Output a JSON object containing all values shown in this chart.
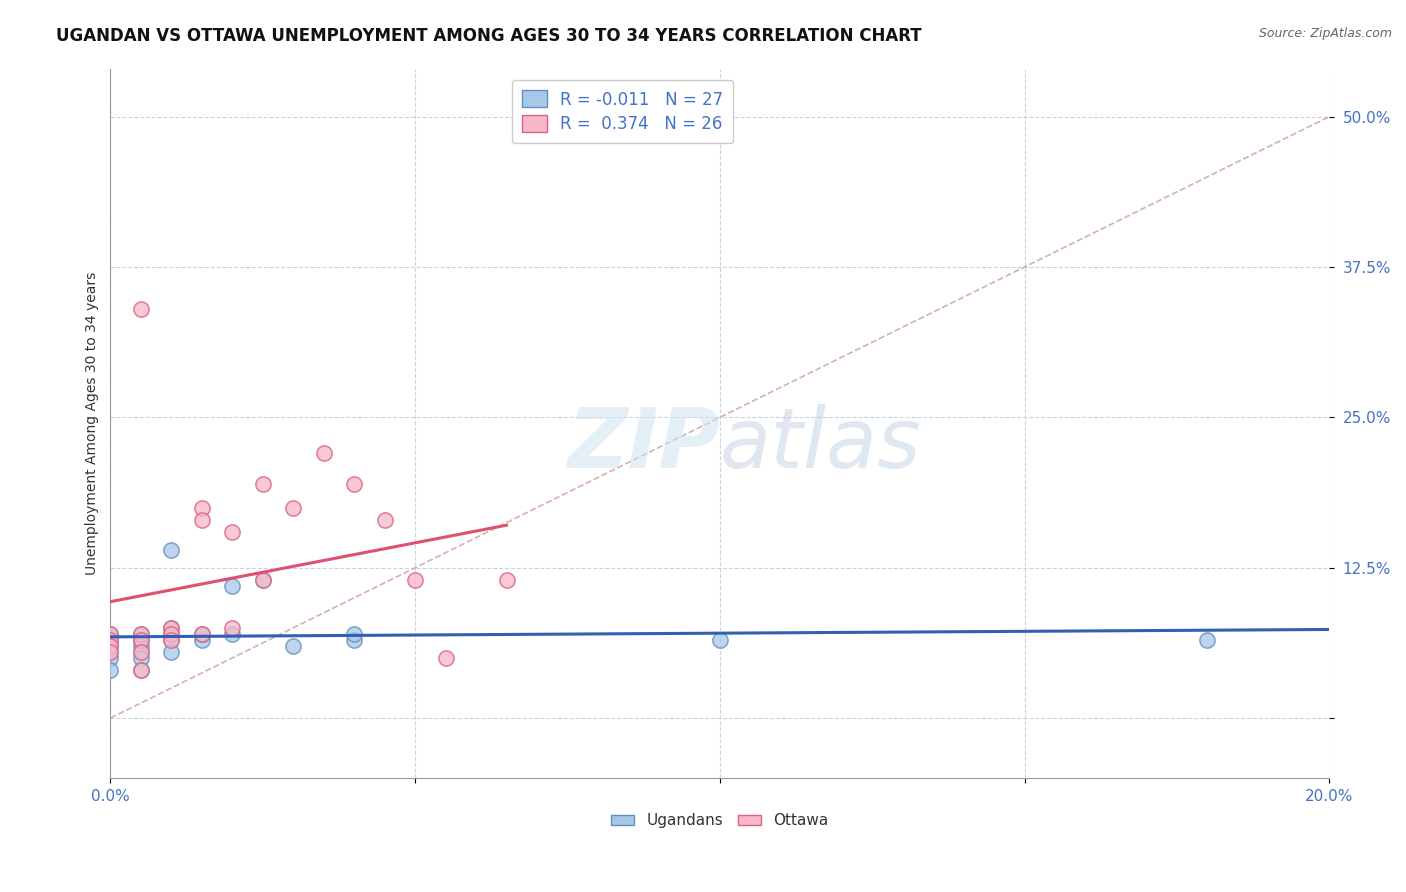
{
  "title": "UGANDAN VS OTTAWA UNEMPLOYMENT AMONG AGES 30 TO 34 YEARS CORRELATION CHART",
  "source": "Source: ZipAtlas.com",
  "ylabel": "Unemployment Among Ages 30 to 34 years",
  "xlim": [
    0.0,
    0.2
  ],
  "ylim": [
    -0.05,
    0.54
  ],
  "xticks": [
    0.0,
    0.05,
    0.1,
    0.15,
    0.2
  ],
  "yticks": [
    0.0,
    0.125,
    0.25,
    0.375,
    0.5
  ],
  "ytick_labels": [
    "",
    "12.5%",
    "25.0%",
    "37.5%",
    "50.0%"
  ],
  "series1_label": "Ugandans",
  "series2_label": "Ottawa",
  "series1_face": "#a8c8e8",
  "series1_edge": "#6090c0",
  "series2_face": "#f8b8c8",
  "series2_edge": "#e06080",
  "series1_R": -0.011,
  "series1_N": 27,
  "series2_R": 0.374,
  "series2_N": 26,
  "line1_color": "#3060b0",
  "line2_color": "#e05070",
  "diag_color": "#d0a0a8",
  "ugandan_x": [
    0.0,
    0.0,
    0.0,
    0.0,
    0.0,
    0.0,
    0.005,
    0.005,
    0.005,
    0.005,
    0.005,
    0.005,
    0.01,
    0.01,
    0.01,
    0.01,
    0.01,
    0.015,
    0.015,
    0.02,
    0.02,
    0.025,
    0.03,
    0.04,
    0.04,
    0.1,
    0.18
  ],
  "ugandan_y": [
    0.07,
    0.065,
    0.06,
    0.055,
    0.05,
    0.04,
    0.07,
    0.065,
    0.06,
    0.055,
    0.05,
    0.04,
    0.075,
    0.07,
    0.065,
    0.055,
    0.14,
    0.065,
    0.07,
    0.07,
    0.11,
    0.115,
    0.06,
    0.065,
    0.07,
    0.065,
    0.065
  ],
  "ottawa_x": [
    0.0,
    0.0,
    0.0,
    0.0,
    0.005,
    0.005,
    0.005,
    0.005,
    0.005,
    0.01,
    0.01,
    0.01,
    0.015,
    0.015,
    0.015,
    0.02,
    0.02,
    0.025,
    0.025,
    0.03,
    0.035,
    0.04,
    0.045,
    0.05,
    0.055,
    0.065
  ],
  "ottawa_y": [
    0.07,
    0.065,
    0.06,
    0.055,
    0.07,
    0.065,
    0.055,
    0.04,
    0.34,
    0.075,
    0.07,
    0.065,
    0.175,
    0.165,
    0.07,
    0.075,
    0.155,
    0.195,
    0.115,
    0.175,
    0.22,
    0.195,
    0.165,
    0.115,
    0.05,
    0.115
  ],
  "watermark_zip": "ZIP",
  "watermark_atlas": "atlas",
  "title_fontsize": 12,
  "label_fontsize": 10,
  "tick_fontsize": 11,
  "legend_fontsize": 12
}
